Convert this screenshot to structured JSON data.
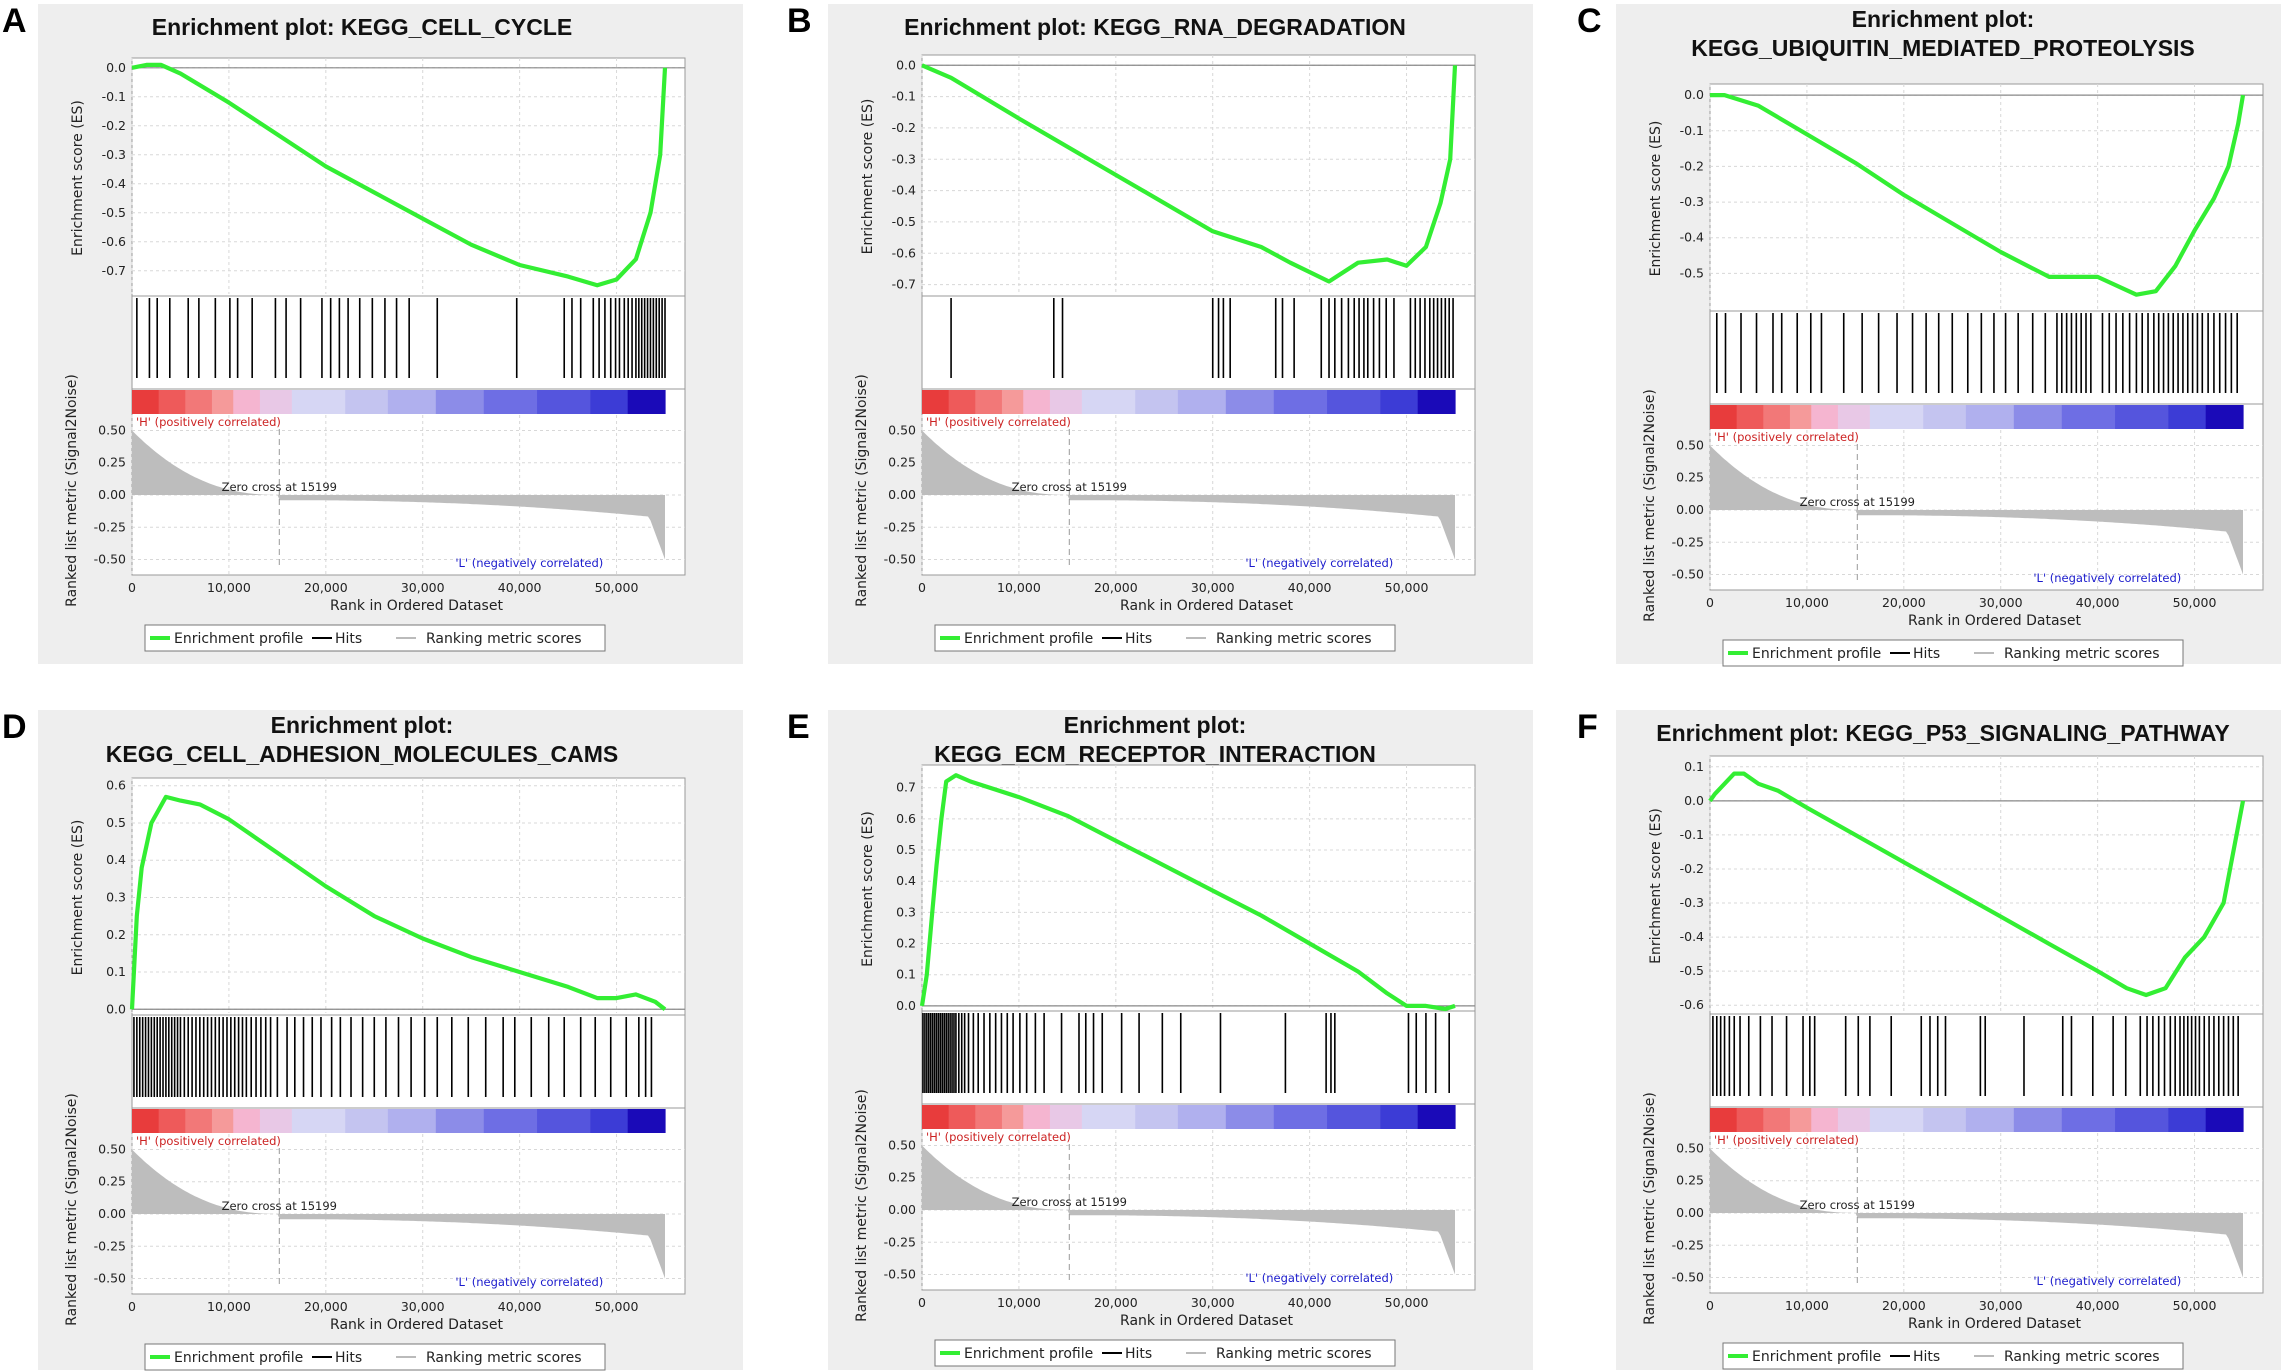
{
  "figure": {
    "colors": {
      "panel_bg": "#eeeeee",
      "enrichment_line": "#33ee33",
      "hits": "#000000",
      "metric_fill": "#bdbdbd",
      "pos_label": "#cc2222",
      "neg_label": "#1a1acc",
      "grid": "#d8d8d8"
    },
    "legend": {
      "enrichment_profile": "Enrichment profile",
      "hits": "Hits",
      "ranking_metric_scores": "Ranking metric scores"
    },
    "xlabel": "Rank in Ordered Dataset",
    "es_ylabel": "Enrichment score (ES)",
    "metric_ylabel": "Ranked list metric (Signal2Noise)",
    "pos_label": "'H' (positively correlated)",
    "neg_label": "'L' (negatively correlated)",
    "zero_cross_label": "Zero cross at 15199",
    "zero_cross_rank": 15199,
    "x_ticks": [
      "0",
      "10,000",
      "20,000",
      "30,000",
      "40,000",
      "50,000"
    ],
    "metric_ticks": [
      "0.50",
      "0.25",
      "0.00",
      "-0.25",
      "-0.50"
    ]
  },
  "chart_data": [
    {
      "panel": "A",
      "type": "line",
      "title": [
        "Enrichment plot: KEGG_CELL_CYCLE"
      ],
      "ylabel": "Enrichment score (ES)",
      "xlabel": "Rank in Ordered Dataset",
      "xlim": [
        0,
        55000
      ],
      "ylim": [
        -0.78,
        0.02
      ],
      "yticks": [
        "0.0",
        "-0.1",
        "-0.2",
        "-0.3",
        "-0.4",
        "-0.5",
        "-0.6",
        "-0.7"
      ],
      "x": [
        0,
        1500,
        3000,
        5000,
        10000,
        15000,
        20000,
        25000,
        30000,
        35000,
        40000,
        45000,
        48000,
        50000,
        52000,
        53500,
        54500,
        55000
      ],
      "es": [
        0.0,
        0.01,
        0.01,
        -0.02,
        -0.12,
        -0.23,
        -0.34,
        -0.43,
        -0.52,
        -0.61,
        -0.68,
        -0.72,
        -0.75,
        -0.73,
        -0.66,
        -0.5,
        -0.3,
        0.0
      ],
      "hits": [
        500,
        1800,
        2600,
        3900,
        5800,
        6900,
        8600,
        10100,
        10900,
        12400,
        14800,
        15900,
        17400,
        19600,
        20500,
        21400,
        22300,
        23500,
        24800,
        26100,
        27300,
        28600,
        31500,
        39700,
        44600,
        45400,
        46300,
        47600,
        48200,
        48800,
        49400,
        49900,
        50300,
        50800,
        51200,
        51600,
        52000,
        52300,
        52600,
        52900,
        53200,
        53500,
        53800,
        54100,
        54400,
        54700,
        55000
      ]
    },
    {
      "panel": "B",
      "type": "line",
      "title": [
        "Enrichment plot: KEGG_RNA_DEGRADATION"
      ],
      "ylabel": "Enrichment score (ES)",
      "xlabel": "Rank in Ordered Dataset",
      "xlim": [
        0,
        55000
      ],
      "ylim": [
        -0.73,
        0.02
      ],
      "yticks": [
        "0.0",
        "-0.1",
        "-0.2",
        "-0.3",
        "-0.4",
        "-0.5",
        "-0.6",
        "-0.7"
      ],
      "x": [
        0,
        3000,
        10000,
        20000,
        30000,
        35000,
        38000,
        42000,
        45000,
        48000,
        50000,
        52000,
        53500,
        54500,
        55000
      ],
      "es": [
        0.0,
        -0.04,
        -0.17,
        -0.35,
        -0.53,
        -0.58,
        -0.63,
        -0.69,
        -0.63,
        -0.62,
        -0.64,
        -0.58,
        -0.44,
        -0.3,
        0.0
      ],
      "hits": [
        3000,
        13600,
        14500,
        30000,
        30600,
        31100,
        31800,
        36500,
        37200,
        38400,
        41200,
        42000,
        42600,
        43300,
        44000,
        44600,
        45100,
        45600,
        46000,
        46600,
        47200,
        47900,
        48700,
        50400,
        50900,
        51400,
        51900,
        52400,
        52800,
        53200,
        53600,
        54000,
        54400,
        54800
      ]
    },
    {
      "panel": "C",
      "type": "line",
      "title": [
        "Enrichment plot:",
        "KEGG_UBIQUITIN_MEDIATED_PROTEOLYSIS"
      ],
      "ylabel": "Enrichment score (ES)",
      "xlabel": "Rank in Ordered Dataset",
      "xlim": [
        0,
        55000
      ],
      "ylim": [
        -0.6,
        0.02
      ],
      "yticks": [
        "0.0",
        "-0.1",
        "-0.2",
        "-0.3",
        "-0.4",
        "-0.5"
      ],
      "x": [
        0,
        1500,
        5000,
        10000,
        15000,
        20000,
        25000,
        30000,
        35000,
        40000,
        44000,
        46000,
        48000,
        50000,
        52000,
        53500,
        54500,
        55000
      ],
      "es": [
        0.0,
        0.0,
        -0.03,
        -0.11,
        -0.19,
        -0.28,
        -0.36,
        -0.44,
        -0.51,
        -0.51,
        -0.56,
        -0.55,
        -0.48,
        -0.38,
        -0.29,
        -0.2,
        -0.08,
        0.0
      ],
      "hits": [
        700,
        1600,
        3200,
        4800,
        6500,
        7400,
        9000,
        10400,
        11500,
        13800,
        15700,
        17400,
        19300,
        20900,
        22300,
        23600,
        25000,
        26600,
        28000,
        29300,
        30500,
        31800,
        33300,
        34600,
        35800,
        36300,
        36800,
        37300,
        37800,
        38300,
        38800,
        39300,
        40500,
        41200,
        41900,
        42600,
        43300,
        44000,
        44600,
        45200,
        45800,
        46300,
        46800,
        47300,
        47800,
        48300,
        48800,
        49300,
        49800,
        50300,
        50800,
        51400,
        52000,
        52600,
        53200,
        53800,
        54400
      ]
    },
    {
      "panel": "D",
      "type": "line",
      "title": [
        "Enrichment plot:",
        "KEGG_CELL_ADHESION_MOLECULES_CAMS"
      ],
      "ylabel": "Enrichment score (ES)",
      "xlabel": "Rank in Ordered Dataset",
      "xlim": [
        0,
        55000
      ],
      "ylim": [
        -0.01,
        0.61
      ],
      "yticks": [
        "0.6",
        "0.5",
        "0.4",
        "0.3",
        "0.2",
        "0.1",
        "0.0"
      ],
      "x": [
        0,
        500,
        1000,
        2000,
        3500,
        5000,
        7000,
        10000,
        15000,
        20000,
        25000,
        30000,
        35000,
        40000,
        45000,
        48000,
        50000,
        52000,
        54000,
        55000
      ],
      "es": [
        0.0,
        0.25,
        0.38,
        0.5,
        0.57,
        0.56,
        0.55,
        0.51,
        0.42,
        0.33,
        0.25,
        0.19,
        0.14,
        0.1,
        0.06,
        0.03,
        0.03,
        0.04,
        0.02,
        0.0
      ],
      "hits": [
        200,
        500,
        800,
        1100,
        1400,
        1700,
        2000,
        2300,
        2600,
        2900,
        3200,
        3500,
        3800,
        4100,
        4400,
        4700,
        5000,
        5400,
        5800,
        6200,
        6600,
        7000,
        7400,
        7800,
        8200,
        8600,
        9000,
        9400,
        9800,
        10200,
        10600,
        11000,
        11400,
        11800,
        12300,
        12800,
        13300,
        13800,
        14300,
        15000,
        16000,
        16800,
        17700,
        18600,
        19500,
        20600,
        21500,
        22600,
        23800,
        25000,
        26200,
        27500,
        28800,
        30200,
        31500,
        33000,
        34700,
        36500,
        38300,
        39500,
        41200,
        43000,
        44600,
        46300,
        47800,
        49400,
        51000,
        52300,
        53000,
        53600
      ]
    },
    {
      "panel": "E",
      "type": "line",
      "title": [
        "Enrichment plot:",
        "KEGG_ECM_RECEPTOR_INTERACTION"
      ],
      "ylabel": "Enrichment score (ES)",
      "xlabel": "Rank in Ordered Dataset",
      "xlim": [
        0,
        55000
      ],
      "ylim": [
        -0.01,
        0.76
      ],
      "yticks": [
        "0.7",
        "0.6",
        "0.5",
        "0.4",
        "0.3",
        "0.2",
        "0.1",
        "0.0"
      ],
      "x": [
        0,
        500,
        1000,
        1500,
        2000,
        2500,
        3500,
        5000,
        10000,
        15000,
        20000,
        25000,
        30000,
        35000,
        40000,
        45000,
        48000,
        50000,
        52000,
        54000,
        55000
      ],
      "es": [
        0.0,
        0.1,
        0.28,
        0.45,
        0.6,
        0.72,
        0.74,
        0.72,
        0.67,
        0.61,
        0.53,
        0.45,
        0.37,
        0.29,
        0.2,
        0.11,
        0.04,
        0.0,
        0.0,
        -0.01,
        0.0
      ],
      "hits": [
        100,
        300,
        500,
        700,
        900,
        1100,
        1300,
        1500,
        1700,
        1900,
        2100,
        2300,
        2500,
        2700,
        2900,
        3100,
        3300,
        3500,
        3800,
        4100,
        4400,
        4800,
        5300,
        5800,
        6400,
        7000,
        7600,
        8200,
        8800,
        9400,
        10100,
        10800,
        11700,
        12600,
        14400,
        16200,
        16900,
        17700,
        18600,
        20600,
        22400,
        24800,
        26700,
        30800,
        37500,
        41700,
        42200,
        42600,
        50200,
        51000,
        52000,
        53000,
        54400
      ]
    },
    {
      "panel": "F",
      "type": "line",
      "title": [
        "Enrichment plot: KEGG_P53_SIGNALING_PATHWAY"
      ],
      "ylabel": "Enrichment score (ES)",
      "xlabel": "Rank in Ordered Dataset",
      "xlim": [
        0,
        55000
      ],
      "ylim": [
        -0.62,
        0.12
      ],
      "yticks": [
        "0.1",
        "0.0",
        "-0.1",
        "-0.2",
        "-0.3",
        "-0.4",
        "-0.5",
        "-0.6"
      ],
      "x": [
        0,
        500,
        1500,
        2500,
        3500,
        5000,
        7000,
        10000,
        15000,
        20000,
        25000,
        30000,
        35000,
        40000,
        43000,
        45000,
        47000,
        49000,
        51000,
        53000,
        54000,
        55000
      ],
      "es": [
        0.0,
        0.02,
        0.05,
        0.08,
        0.08,
        0.05,
        0.03,
        -0.02,
        -0.1,
        -0.18,
        -0.26,
        -0.34,
        -0.42,
        -0.5,
        -0.55,
        -0.57,
        -0.55,
        -0.46,
        -0.4,
        -0.3,
        -0.15,
        0.0
      ],
      "hits": [
        300,
        700,
        1100,
        1500,
        2000,
        2500,
        3100,
        4000,
        5200,
        6400,
        7900,
        9600,
        10300,
        10800,
        14000,
        15300,
        16500,
        18700,
        21800,
        22700,
        23500,
        24300,
        27900,
        28400,
        32400,
        36400,
        37300,
        39500,
        41600,
        42900,
        44400,
        45100,
        45700,
        46300,
        46900,
        47500,
        48000,
        48500,
        48900,
        49300,
        49700,
        50100,
        50500,
        51000,
        51500,
        52000,
        52500,
        53000,
        53500,
        54000,
        54500
      ]
    }
  ]
}
